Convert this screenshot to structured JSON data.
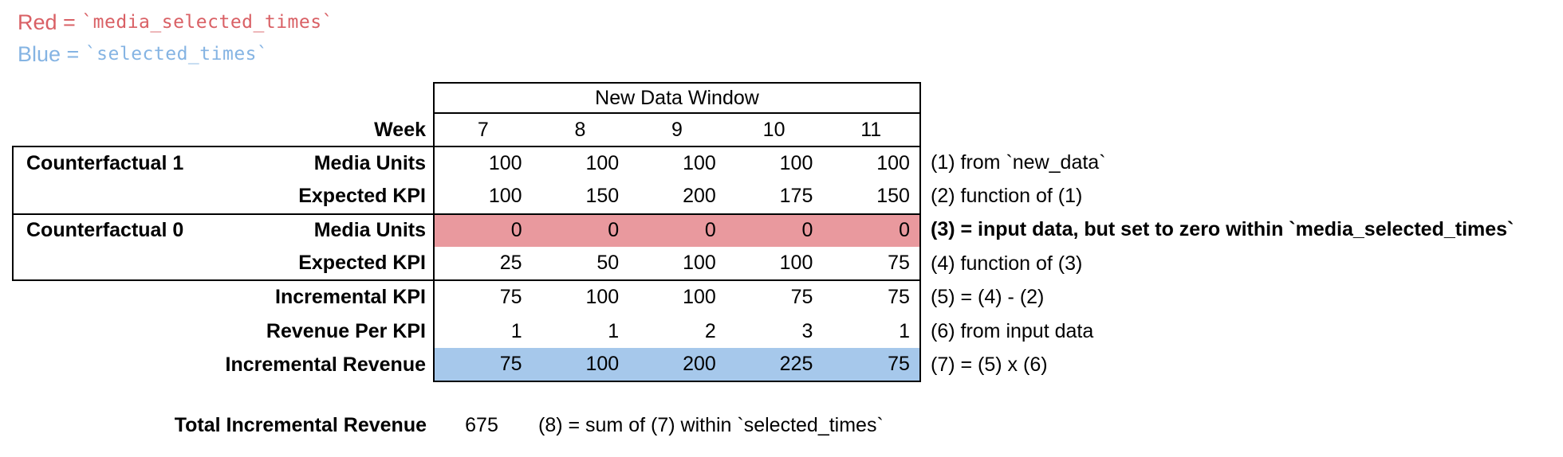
{
  "colors": {
    "red_text": "#D96065",
    "blue_text": "#85B4E3",
    "red_fill": "#E9999E",
    "blue_fill": "#A6C8EB",
    "border": "#000000"
  },
  "legend": {
    "red_label": "Red = ",
    "red_code": "`media_selected_times`",
    "blue_label": "Blue = ",
    "blue_code": "`selected_times`"
  },
  "table": {
    "window_title": "New Data Window",
    "week_label": "Week",
    "weeks": [
      "7",
      "8",
      "9",
      "10",
      "11"
    ],
    "rows": [
      {
        "group": "Counterfactual 1",
        "label": "Media Units",
        "values": [
          "100",
          "100",
          "100",
          "100",
          "100"
        ],
        "annotation": "(1) from `new_data`",
        "highlight": "none"
      },
      {
        "group": "",
        "label": "Expected KPI",
        "values": [
          "100",
          "150",
          "200",
          "175",
          "150"
        ],
        "annotation": "(2) function of (1)",
        "highlight": "none"
      },
      {
        "group": "Counterfactual 0",
        "label": "Media Units",
        "values": [
          "0",
          "0",
          "0",
          "0",
          "0"
        ],
        "annotation": "(3) = input data, but set to zero within `media_selected_times`",
        "highlight": "red"
      },
      {
        "group": "",
        "label": "Expected KPI",
        "values": [
          "25",
          "50",
          "100",
          "100",
          "75"
        ],
        "annotation": "(4) function of (3)",
        "highlight": "none"
      },
      {
        "group": "",
        "label": "Incremental KPI",
        "values": [
          "75",
          "100",
          "100",
          "75",
          "75"
        ],
        "annotation": "(5) = (4) - (2)",
        "highlight": "none"
      },
      {
        "group": "",
        "label": "Revenue Per KPI",
        "values": [
          "1",
          "1",
          "2",
          "3",
          "1"
        ],
        "annotation": "(6) from input data",
        "highlight": "none"
      },
      {
        "group": "",
        "label": "Incremental Revenue",
        "values": [
          "75",
          "100",
          "200",
          "225",
          "75"
        ],
        "annotation": "(7) = (5) x (6)",
        "highlight": "blue"
      }
    ]
  },
  "total": {
    "label": "Total Incremental Revenue",
    "value": "675",
    "annotation": "(8) = sum of (7) within `selected_times`"
  }
}
